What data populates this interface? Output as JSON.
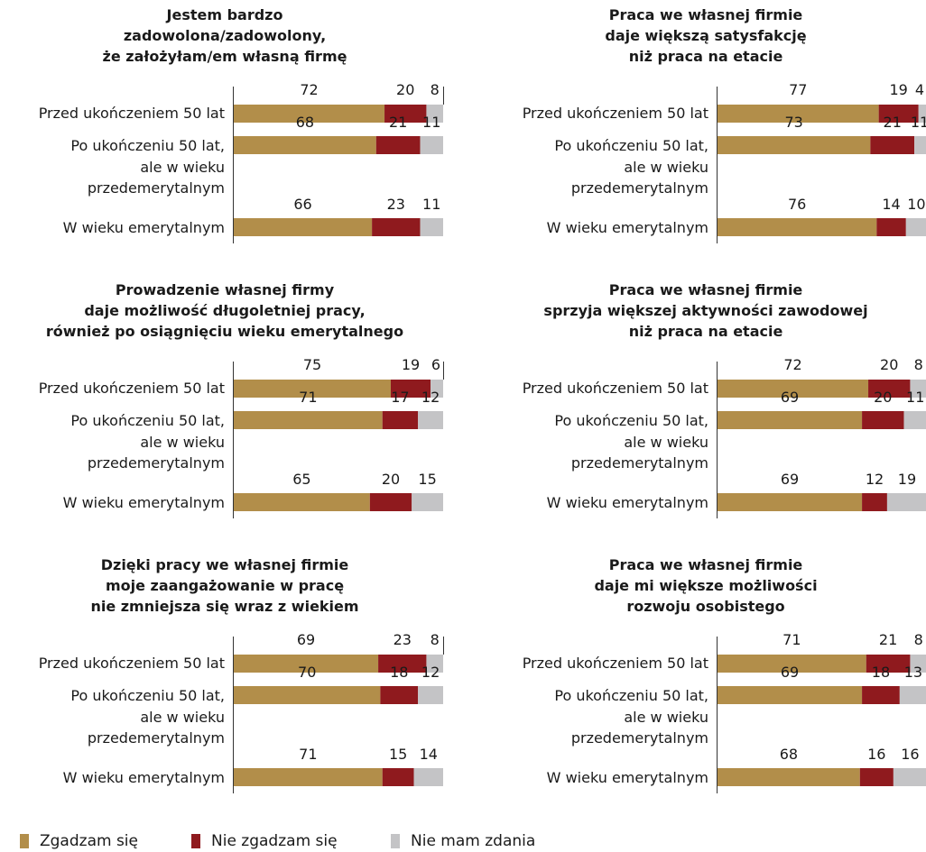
{
  "legend": {
    "agree": "Zgadzam się",
    "disagree": "Nie zgadzam się",
    "no_opinion": "Nie mam zdania"
  },
  "colors": {
    "agree": "#B28E4A",
    "disagree": "#8F1A1E",
    "no_opinion": "#C4C4C6"
  },
  "chart_data": [
    {
      "type": "bar",
      "stacked": true,
      "orientation": "horizontal",
      "title": [
        "Jestem bardzo",
        "zadowolona/zadowolony,",
        "że założyłam/em własną firmę"
      ],
      "categories": [
        [
          "Przed ukończeniem 50 lat"
        ],
        [
          "Po ukończeniu 50 lat,",
          "ale w wieku",
          "przedemerytalnym"
        ],
        [
          "W wieku emerytalnym"
        ]
      ],
      "series": [
        {
          "name": "Zgadzam się",
          "values": [
            72,
            68,
            66
          ]
        },
        {
          "name": "Nie zgadzam się",
          "values": [
            20,
            21,
            23
          ]
        },
        {
          "name": "Nie mam zdania",
          "values": [
            8,
            11,
            11
          ]
        }
      ],
      "xlim": [
        0,
        100
      ]
    },
    {
      "type": "bar",
      "stacked": true,
      "orientation": "horizontal",
      "title": [
        "Praca we własnej firmie",
        "daje większą satysfakcję",
        "niż praca na etacie"
      ],
      "categories": [
        [
          "Przed ukończeniem 50 lat"
        ],
        [
          "Po ukończeniu 50 lat,",
          "ale w wieku",
          "przedemerytalnym"
        ],
        [
          "W wieku emerytalnym"
        ]
      ],
      "series": [
        {
          "name": "Zgadzam się",
          "values": [
            77,
            73,
            76
          ]
        },
        {
          "name": "Nie zgadzam się",
          "values": [
            19,
            21,
            14
          ]
        },
        {
          "name": "Nie mam zdania",
          "values": [
            4,
            11,
            10
          ]
        }
      ],
      "xlim": [
        0,
        100
      ]
    },
    {
      "type": "bar",
      "stacked": true,
      "orientation": "horizontal",
      "title": [
        "Prowadzenie własnej firmy",
        "daje możliwość długoletniej pracy,",
        "również po osiągnięciu wieku emerytalnego"
      ],
      "categories": [
        [
          "Przed ukończeniem 50 lat"
        ],
        [
          "Po ukończeniu 50 lat,",
          "ale w wieku",
          "przedemerytalnym"
        ],
        [
          "W wieku emerytalnym"
        ]
      ],
      "series": [
        {
          "name": "Zgadzam się",
          "values": [
            75,
            71,
            65
          ]
        },
        {
          "name": "Nie zgadzam się",
          "values": [
            19,
            17,
            20
          ]
        },
        {
          "name": "Nie mam zdania",
          "values": [
            6,
            12,
            15
          ]
        }
      ],
      "xlim": [
        0,
        100
      ]
    },
    {
      "type": "bar",
      "stacked": true,
      "orientation": "horizontal",
      "title": [
        "Praca we własnej firmie",
        "sprzyja większej aktywności zawodowej",
        "niż praca na etacie"
      ],
      "categories": [
        [
          "Przed ukończeniem 50 lat"
        ],
        [
          "Po ukończeniu 50 lat,",
          "ale w wieku",
          "przedemerytalnym"
        ],
        [
          "W wieku emerytalnym"
        ]
      ],
      "series": [
        {
          "name": "Zgadzam się",
          "values": [
            72,
            69,
            69
          ]
        },
        {
          "name": "Nie zgadzam się",
          "values": [
            20,
            20,
            12
          ]
        },
        {
          "name": "Nie mam zdania",
          "values": [
            8,
            11,
            19
          ]
        }
      ],
      "xlim": [
        0,
        100
      ]
    },
    {
      "type": "bar",
      "stacked": true,
      "orientation": "horizontal",
      "title": [
        "Dzięki pracy we własnej firmie",
        "moje zaangażowanie w pracę",
        "nie zmniejsza się wraz z wiekiem"
      ],
      "categories": [
        [
          "Przed ukończeniem 50 lat"
        ],
        [
          "Po ukończeniu 50 lat,",
          "ale w wieku",
          "przedemerytalnym"
        ],
        [
          "W wieku emerytalnym"
        ]
      ],
      "series": [
        {
          "name": "Zgadzam się",
          "values": [
            69,
            70,
            71
          ]
        },
        {
          "name": "Nie zgadzam się",
          "values": [
            23,
            18,
            15
          ]
        },
        {
          "name": "Nie mam zdania",
          "values": [
            8,
            12,
            14
          ]
        }
      ],
      "xlim": [
        0,
        100
      ]
    },
    {
      "type": "bar",
      "stacked": true,
      "orientation": "horizontal",
      "title": [
        "Praca we własnej firmie",
        "daje mi większe możliwości",
        "rozwoju osobistego"
      ],
      "categories": [
        [
          "Przed ukończeniem 50 lat"
        ],
        [
          "Po ukończeniu 50 lat,",
          "ale w wieku",
          "przedemerytalnym"
        ],
        [
          "W wieku emerytalnym"
        ]
      ],
      "series": [
        {
          "name": "Zgadzam się",
          "values": [
            71,
            69,
            68
          ]
        },
        {
          "name": "Nie zgadzam się",
          "values": [
            21,
            18,
            16
          ]
        },
        {
          "name": "Nie mam zdania",
          "values": [
            8,
            13,
            16
          ]
        }
      ],
      "xlim": [
        0,
        100
      ]
    }
  ]
}
